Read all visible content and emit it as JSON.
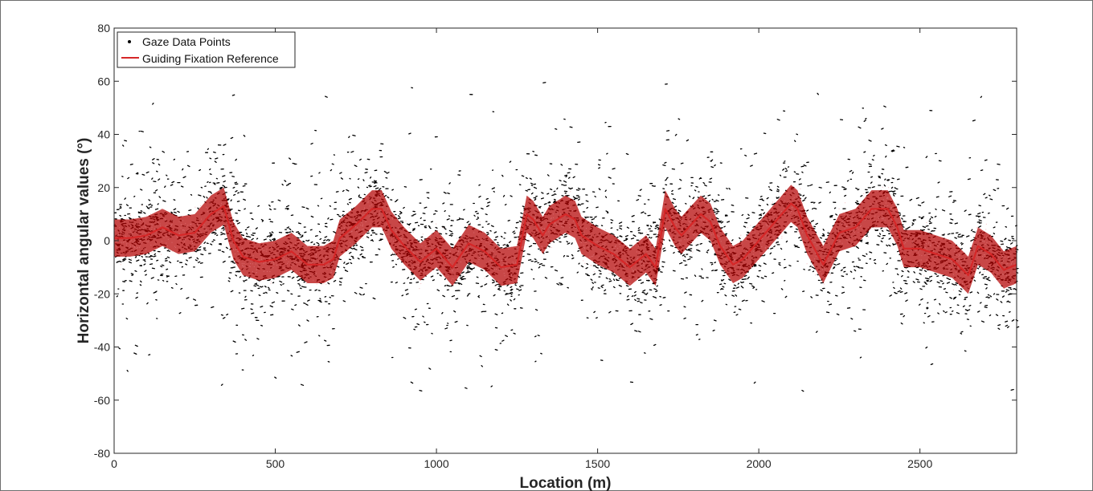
{
  "chart_data": {
    "type": "scatter",
    "title": "",
    "xlabel": "Location (m)",
    "ylabel": "Horizontal angular values (°)",
    "xlim": [
      0,
      2800
    ],
    "ylim": [
      -80,
      80
    ],
    "x_ticks": [
      "0",
      "500",
      "1000",
      "1500",
      "2000",
      "2500"
    ],
    "x_tick_values": [
      0,
      500,
      1000,
      1500,
      2000,
      2500
    ],
    "y_ticks": [
      "80",
      "60",
      "40",
      "20",
      "0",
      "-20",
      "-40",
      "-60",
      "-80"
    ],
    "y_tick_values": [
      80,
      60,
      40,
      20,
      0,
      -20,
      -40,
      -60,
      -80
    ],
    "grid": false,
    "legend": {
      "placement": "top-left",
      "entries": [
        {
          "label": "Gaze Data Points",
          "marker": "dot",
          "color": "#000000"
        },
        {
          "label": "Guiding Fixation Reference",
          "marker": "line",
          "color": "#d62728"
        }
      ]
    },
    "series": [
      {
        "name": "Guiding Fixation Reference",
        "type": "line",
        "color": "#d62728",
        "band_color": "#b30000",
        "band_halfwidth": 7,
        "x": [
          0,
          50,
          100,
          150,
          200,
          250,
          300,
          340,
          370,
          400,
          450,
          500,
          550,
          600,
          650,
          680,
          700,
          750,
          800,
          830,
          860,
          900,
          950,
          1000,
          1050,
          1100,
          1150,
          1200,
          1250,
          1280,
          1300,
          1330,
          1350,
          1400,
          1430,
          1450,
          1500,
          1550,
          1600,
          1650,
          1680,
          1710,
          1740,
          1760,
          1790,
          1820,
          1850,
          1880,
          1920,
          1950,
          2000,
          2050,
          2100,
          2120,
          2150,
          2200,
          2250,
          2300,
          2350,
          2400,
          2430,
          2450,
          2500,
          2550,
          2600,
          2650,
          2680,
          2720,
          2760,
          2800
        ],
        "y": [
          1,
          1,
          2,
          5,
          2,
          3,
          10,
          13,
          0,
          -6,
          -8,
          -7,
          -4,
          -9,
          -9,
          -7,
          1,
          6,
          12,
          12,
          4,
          -2,
          -8,
          -3,
          -10,
          -1,
          -4,
          -10,
          -9,
          10,
          8,
          2,
          6,
          10,
          8,
          2,
          -2,
          -5,
          -10,
          -5,
          -10,
          12,
          5,
          2,
          6,
          10,
          7,
          -2,
          -9,
          -7,
          0,
          7,
          14,
          12,
          2,
          -9,
          3,
          5,
          12,
          12,
          5,
          -3,
          -3,
          -5,
          -7,
          -13,
          -2,
          -5,
          -11,
          -9
        ]
      },
      {
        "name": "Gaze Data Points",
        "type": "scatter",
        "color": "#000000",
        "values": "dense point cloud around the reference, spread roughly ±10 to ±45° with outliers from about -57 to 61°"
      }
    ]
  }
}
